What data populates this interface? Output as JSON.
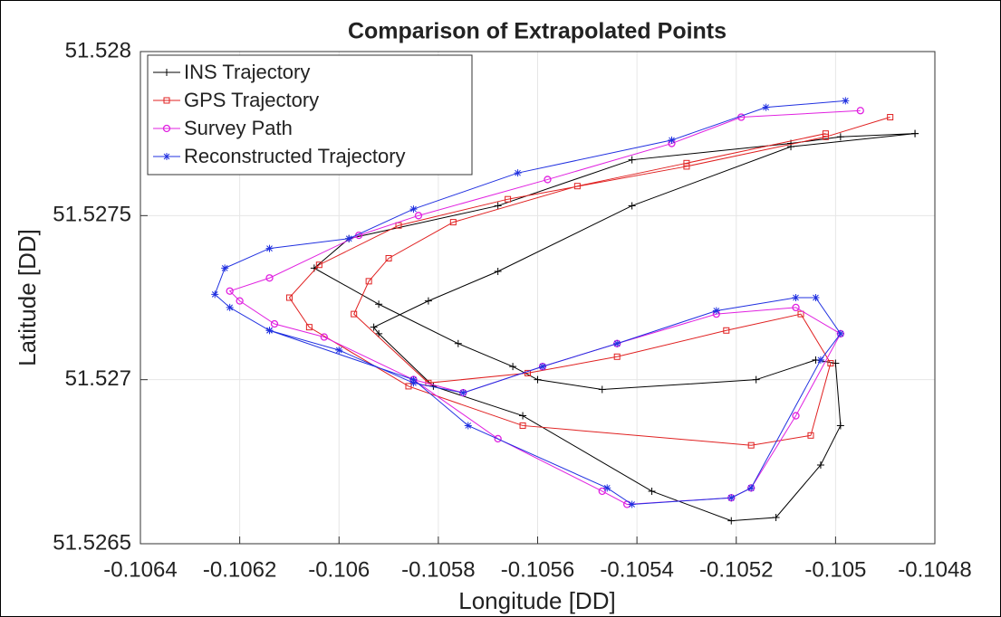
{
  "chart_data": {
    "type": "line",
    "title": "Comparison of Extrapolated Points",
    "x_label": "Longitude [DD]",
    "y_label": "Latitude [DD]",
    "xlim": [
      -0.1064,
      -0.1048
    ],
    "ylim": [
      51.5265,
      51.528
    ],
    "xticks": [
      -0.1064,
      -0.1062,
      -0.106,
      -0.1058,
      -0.1056,
      -0.1054,
      -0.1052,
      -0.105,
      -0.1048
    ],
    "yticks": [
      51.5265,
      51.527,
      51.5275,
      51.528
    ],
    "grid": true,
    "legend": "upper-left",
    "series": [
      {
        "name": "INS Trajectory",
        "color": "#000000",
        "marker": "plus",
        "x": [
          -0.10484,
          -0.10499,
          -0.10509,
          -0.10541,
          -0.10568,
          -0.10598,
          -0.10605,
          -0.10592,
          -0.10576,
          -0.10565,
          -0.1056,
          -0.10547,
          -0.10516,
          -0.10504,
          -0.105,
          -0.10499,
          -0.10503,
          -0.10512,
          -0.10521,
          -0.10537,
          -0.10563,
          -0.10581,
          -0.10592,
          -0.10593,
          -0.10582,
          -0.10568,
          -0.10541,
          -0.10509,
          -0.10484
        ],
        "values": [
          51.52775,
          51.52774,
          51.52772,
          51.52767,
          51.52753,
          51.52743,
          51.52734,
          51.52723,
          51.52711,
          51.52704,
          51.527,
          51.52697,
          51.527,
          51.52706,
          51.52705,
          51.52686,
          51.52674,
          51.52658,
          51.52657,
          51.52666,
          51.52689,
          51.52698,
          51.52714,
          51.52716,
          51.52724,
          51.52733,
          51.52753,
          51.52771,
          51.52775
        ]
      },
      {
        "name": "GPS Trajectory",
        "color": "#e02020",
        "marker": "square",
        "x": [
          -0.10489,
          -0.10502,
          -0.1053,
          -0.10566,
          -0.10588,
          -0.10604,
          -0.1061,
          -0.10606,
          -0.10586,
          -0.10563,
          -0.10517,
          -0.10505,
          -0.10501,
          -0.10507,
          -0.10522,
          -0.10544,
          -0.10562,
          -0.10582,
          -0.10597,
          -0.10594,
          -0.1059,
          -0.10577,
          -0.10552,
          -0.1053,
          -0.10502
        ],
        "values": [
          51.5278,
          51.52774,
          51.52765,
          51.52755,
          51.52747,
          51.52735,
          51.52725,
          51.52716,
          51.52698,
          51.52686,
          51.5268,
          51.52683,
          51.52705,
          51.5272,
          51.52715,
          51.52707,
          51.52702,
          51.52699,
          51.5272,
          51.5273,
          51.52737,
          51.52748,
          51.52759,
          51.52766,
          51.52775
        ]
      },
      {
        "name": "Survey Path",
        "color": "#e020e0",
        "marker": "circle",
        "x": [
          -0.10495,
          -0.10519,
          -0.10533,
          -0.10558,
          -0.10584,
          -0.10596,
          -0.10614,
          -0.10622,
          -0.1062,
          -0.10613,
          -0.10603,
          -0.10585,
          -0.10568,
          -0.10547,
          -0.10542,
          -0.10521,
          -0.10517,
          -0.10508,
          -0.10499,
          -0.10508,
          -0.10524,
          -0.10544,
          -0.10559,
          -0.10575,
          -0.10585
        ],
        "values": [
          51.52782,
          51.5278,
          51.52772,
          51.52761,
          51.5275,
          51.52744,
          51.52731,
          51.52727,
          51.52724,
          51.52717,
          51.52713,
          51.527,
          51.52682,
          51.52666,
          51.52662,
          51.52664,
          51.52667,
          51.52689,
          51.52714,
          51.52722,
          51.5272,
          51.52711,
          51.52704,
          51.52696,
          51.527
        ]
      },
      {
        "name": "Reconstructed Trajectory",
        "color": "#2030e0",
        "marker": "star",
        "x": [
          -0.10498,
          -0.10514,
          -0.10533,
          -0.10564,
          -0.10585,
          -0.10598,
          -0.10614,
          -0.10623,
          -0.10625,
          -0.10622,
          -0.10614,
          -0.10585,
          -0.10574,
          -0.10546,
          -0.10541,
          -0.10521,
          -0.10517,
          -0.10503,
          -0.10499,
          -0.10504,
          -0.10508,
          -0.10524,
          -0.10544,
          -0.10559,
          -0.10575,
          -0.10585,
          -0.106,
          -0.10614
        ],
        "values": [
          51.52785,
          51.52783,
          51.52773,
          51.52763,
          51.52752,
          51.52743,
          51.5274,
          51.52734,
          51.52726,
          51.52722,
          51.52715,
          51.527,
          51.52686,
          51.52667,
          51.52662,
          51.52664,
          51.52667,
          51.52706,
          51.52714,
          51.52725,
          51.52725,
          51.52721,
          51.52711,
          51.52704,
          51.52696,
          51.52699,
          51.52709,
          51.52715
        ]
      }
    ]
  }
}
